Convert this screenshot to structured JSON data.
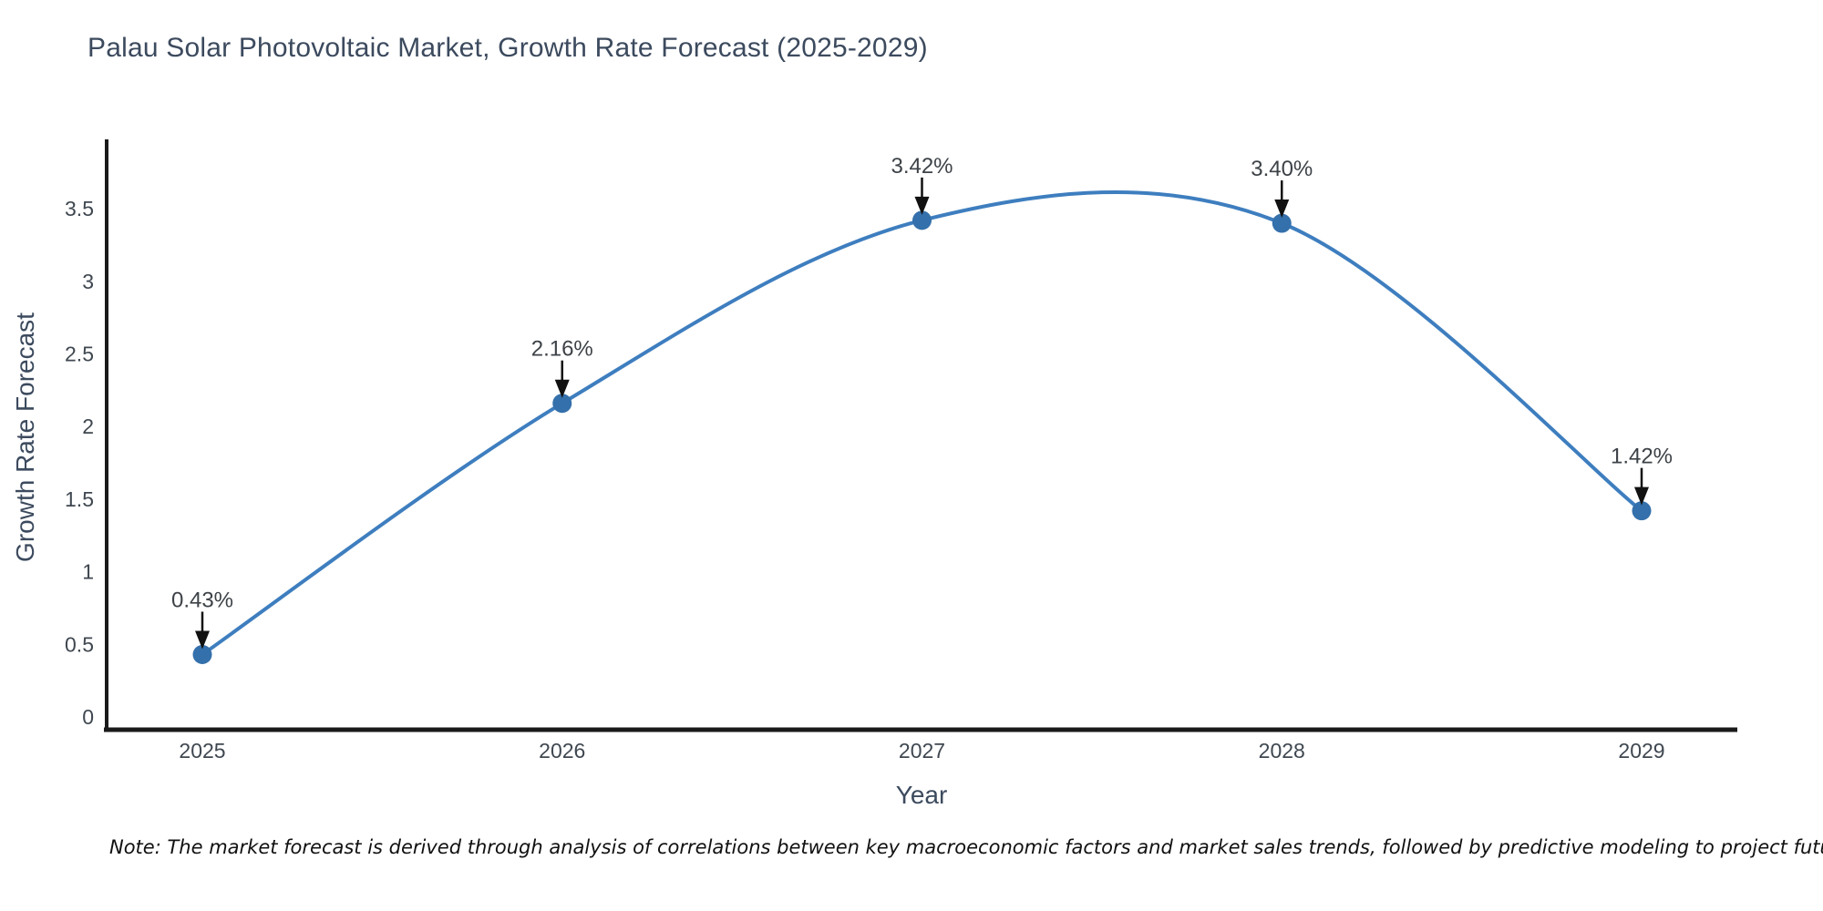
{
  "title": "Palau Solar Photovoltaic Market, Growth Rate Forecast (2025-2029)",
  "note": "Note: The market forecast is derived through analysis of correlations between key macroeconomic factors and market sales trends, followed by predictive modeling to project future sales",
  "chart_data": {
    "type": "line",
    "title": "Palau Solar Photovoltaic Market, Growth Rate Forecast (2025-2029)",
    "xlabel": "Year",
    "ylabel": "Growth Rate Forecast",
    "x": [
      2025,
      2026,
      2027,
      2028,
      2029
    ],
    "xtick_labels": [
      "2025",
      "2026",
      "2027",
      "2028",
      "2029"
    ],
    "series": [
      {
        "name": "Growth Rate Forecast",
        "values": [
          0.43,
          2.16,
          3.42,
          3.4,
          1.42
        ]
      }
    ],
    "point_labels": [
      "0.43%",
      "2.16%",
      "3.42%",
      "3.40%",
      "1.42%"
    ],
    "yticks": [
      0,
      0.5,
      1,
      1.5,
      2,
      2.5,
      3,
      3.5
    ],
    "ytick_labels": [
      "0",
      "0.5",
      "1",
      "1.5",
      "2",
      "2.5",
      "3",
      "3.5"
    ],
    "ylim": [
      0,
      3.75
    ],
    "grid": false,
    "legend": "none",
    "smooth": true,
    "line_color": "#3e7ebf",
    "marker_color": "#3470ab",
    "axis_color": "#1a1a1a",
    "annotation_color": "#111111",
    "label_text_color": "#3d4247",
    "tick_color": "#3f4750"
  }
}
